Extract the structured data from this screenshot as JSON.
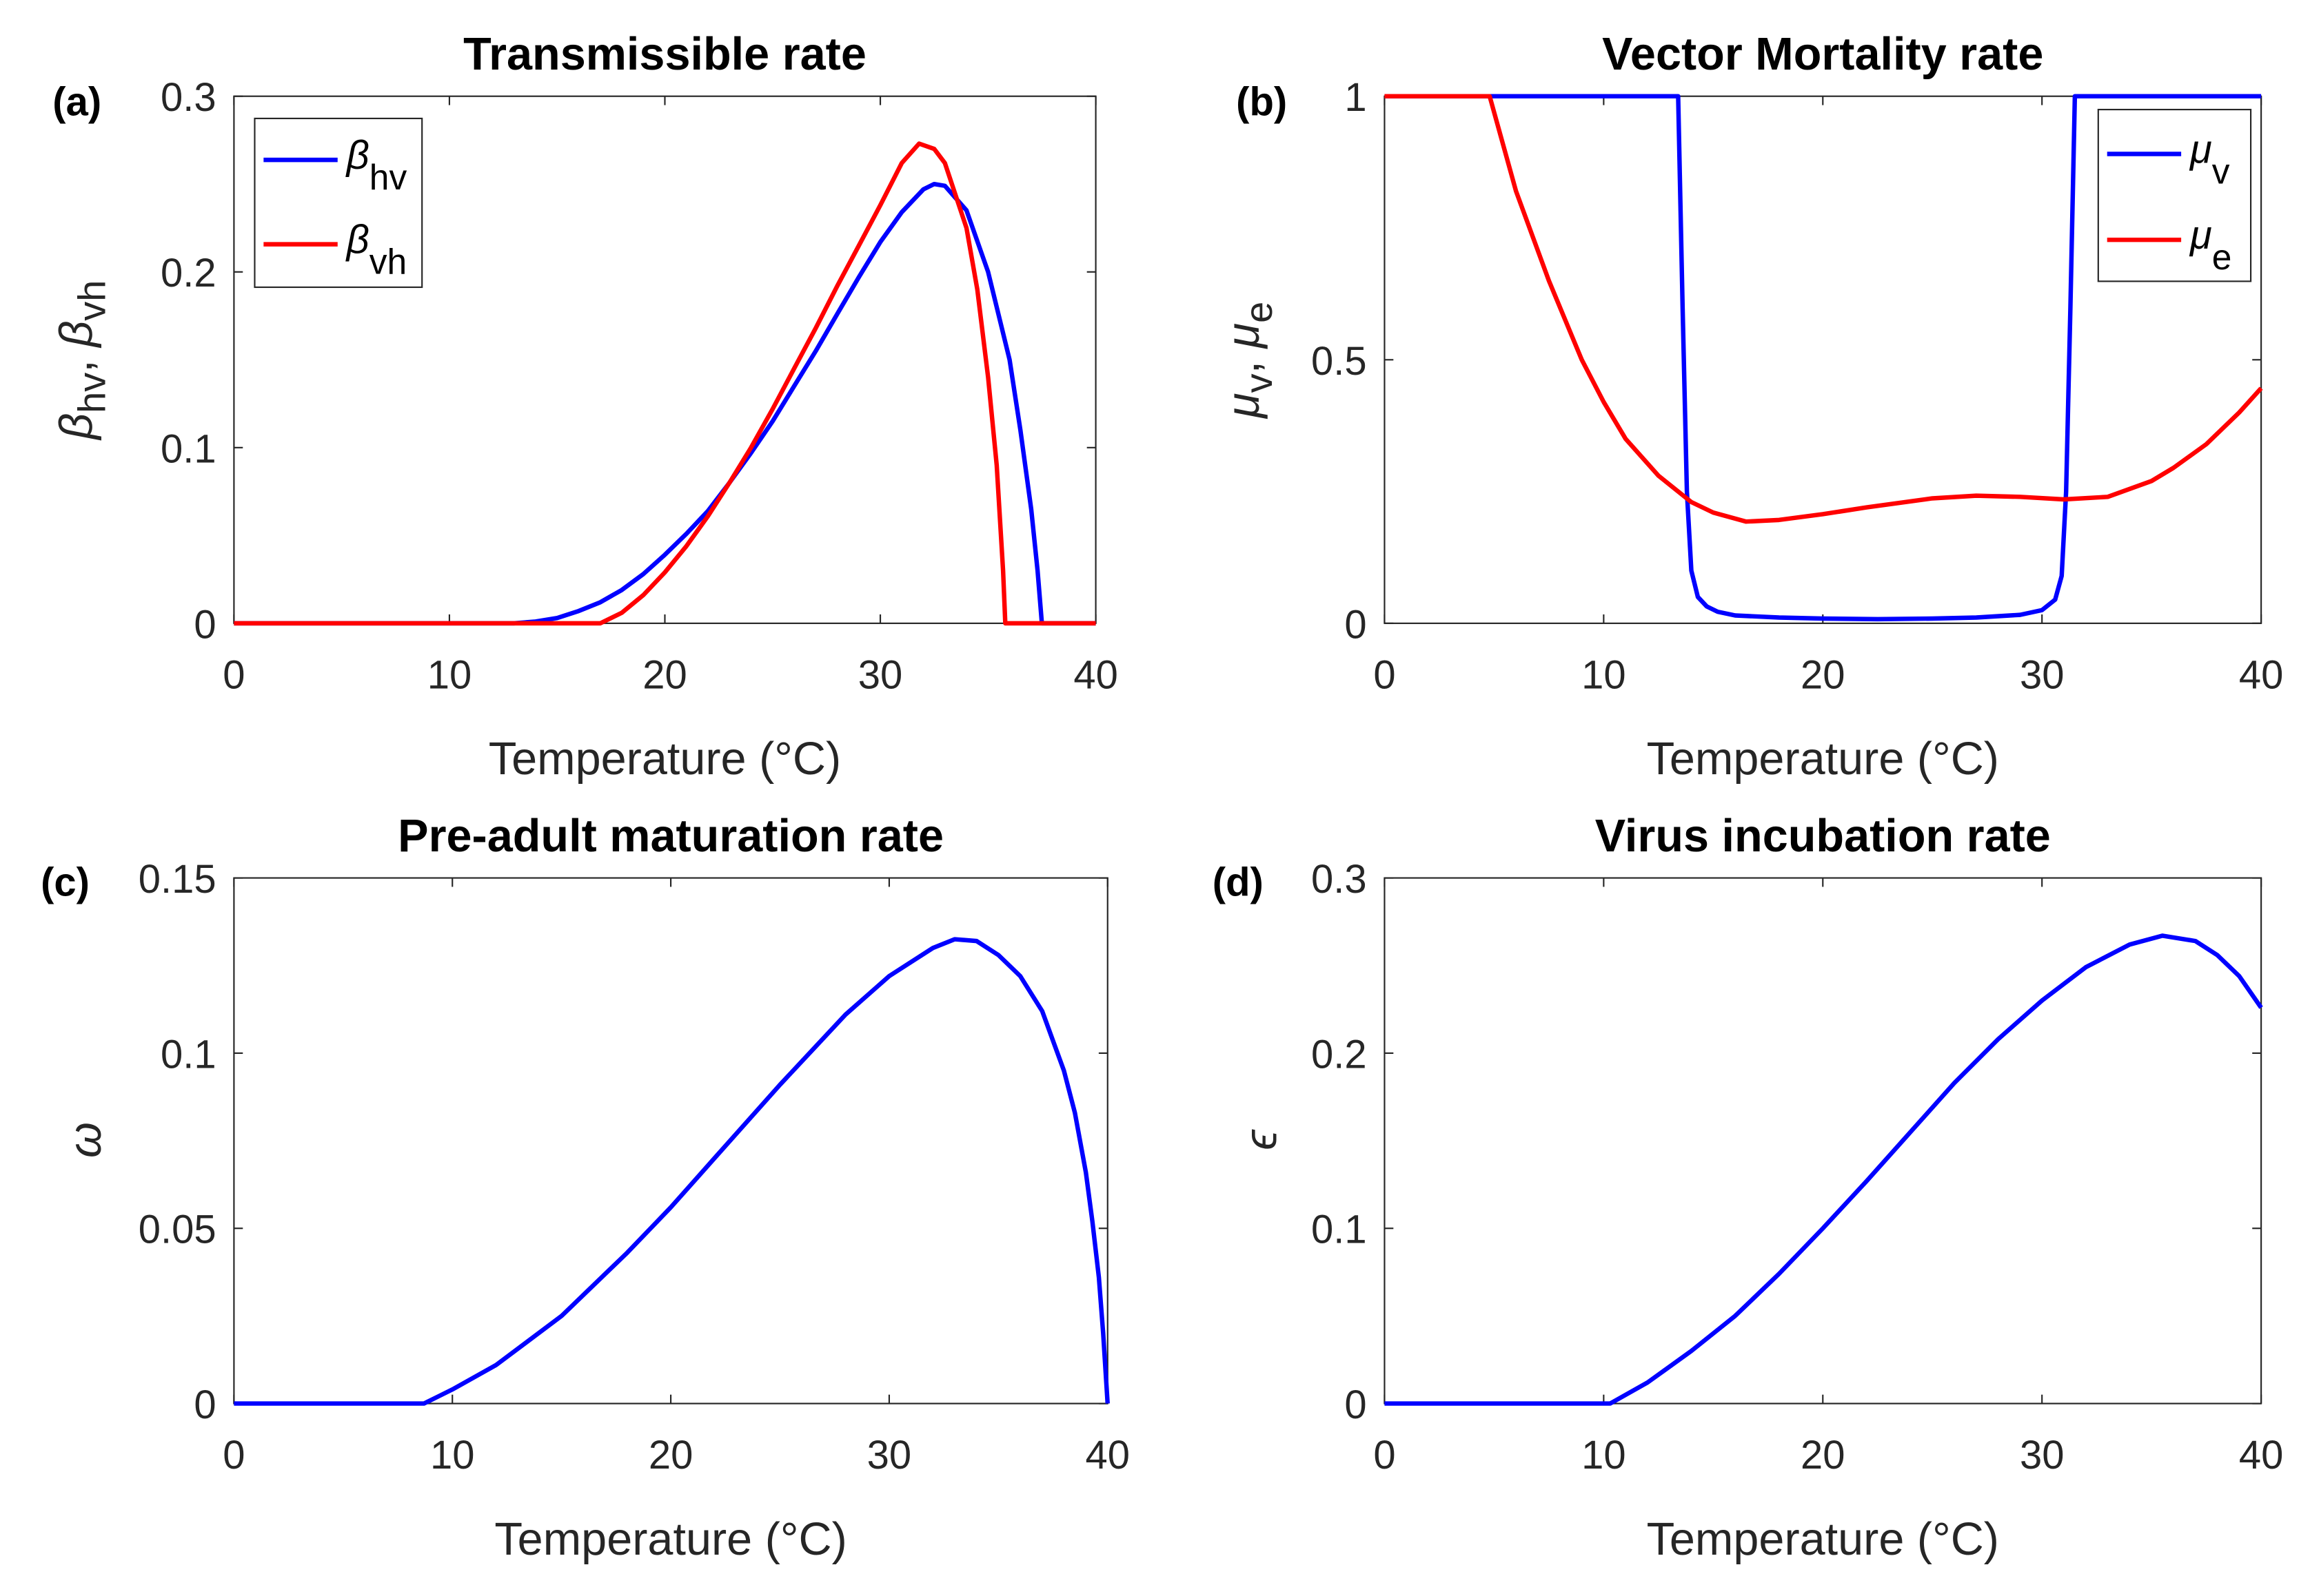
{
  "chart_data": [
    {
      "type": "line",
      "panel_label": "(a)",
      "title": "Transmissible rate",
      "xlabel": "Temperature (°C)",
      "ylabel_parts": [
        {
          "t": "β",
          "italic": true
        },
        {
          "t": "hv",
          "sub": true
        },
        {
          "t": ",  "
        },
        {
          "t": "β",
          "italic": true
        },
        {
          "t": "vh",
          "sub": true
        }
      ],
      "xlim": [
        0,
        40
      ],
      "ylim": [
        0,
        0.3
      ],
      "xticks": [
        0,
        10,
        20,
        30,
        40
      ],
      "xtick_labels": [
        "0",
        "10",
        "20",
        "30",
        "40"
      ],
      "yticks": [
        0,
        0.1,
        0.2,
        0.3
      ],
      "ytick_labels": [
        "0",
        "0.1",
        "0.2",
        "0.3"
      ],
      "legend_placement": "top-left",
      "series": [
        {
          "name": "β_hv",
          "legend_symbol": "β",
          "legend_sub": "hv",
          "color": "#0000ff",
          "x": [
            0,
            13,
            14,
            15,
            16,
            17,
            18,
            19,
            20,
            21,
            22,
            23,
            24,
            25,
            26,
            27,
            28,
            29,
            30,
            31,
            32,
            32.5,
            33,
            34,
            35,
            36,
            36.5,
            37,
            37.3,
            37.5,
            40
          ],
          "y": [
            0,
            0,
            0.001,
            0.003,
            0.007,
            0.012,
            0.019,
            0.028,
            0.039,
            0.051,
            0.064,
            0.08,
            0.097,
            0.115,
            0.135,
            0.155,
            0.176,
            0.197,
            0.217,
            0.234,
            0.247,
            0.25,
            0.249,
            0.235,
            0.2,
            0.15,
            0.11,
            0.065,
            0.03,
            0,
            0
          ]
        },
        {
          "name": "β_vh",
          "legend_symbol": "β",
          "legend_sub": "vh",
          "color": "#ff0000",
          "x": [
            0,
            17,
            18,
            19,
            20,
            21,
            22,
            23,
            24,
            25,
            26,
            27,
            28,
            29,
            30,
            31,
            31.8,
            32.5,
            33,
            34,
            34.5,
            35,
            35.4,
            35.7,
            35.8,
            40
          ],
          "y": [
            0,
            0,
            0.006,
            0.016,
            0.029,
            0.044,
            0.061,
            0.08,
            0.1,
            0.122,
            0.145,
            0.168,
            0.192,
            0.215,
            0.238,
            0.262,
            0.273,
            0.27,
            0.262,
            0.225,
            0.19,
            0.14,
            0.09,
            0.03,
            0,
            0
          ]
        }
      ]
    },
    {
      "type": "line",
      "panel_label": "(b)",
      "title": "Vector Mortality rate",
      "xlabel": "Temperature (°C)",
      "ylabel_parts": [
        {
          "t": "μ",
          "italic": true
        },
        {
          "t": "v",
          "sub": true
        },
        {
          "t": ",  "
        },
        {
          "t": "μ",
          "italic": true
        },
        {
          "t": "e",
          "sub": true
        }
      ],
      "xlim": [
        0,
        40
      ],
      "ylim": [
        0,
        1
      ],
      "xticks": [
        0,
        10,
        20,
        30,
        40
      ],
      "xtick_labels": [
        "0",
        "10",
        "20",
        "30",
        "40"
      ],
      "yticks": [
        0,
        0.5,
        1
      ],
      "ytick_labels": [
        "0",
        "0.5",
        "1"
      ],
      "legend_placement": "top-right",
      "series": [
        {
          "name": "μ_v",
          "legend_symbol": "μ",
          "legend_sub": "v",
          "color": "#0000ff",
          "x": [
            0,
            13.4,
            13.6,
            13.8,
            14,
            14.3,
            14.7,
            15.2,
            16,
            18,
            20,
            22.5,
            25,
            27,
            29,
            30,
            30.6,
            30.9,
            31.1,
            31.3,
            31.5,
            40
          ],
          "y": [
            1,
            1,
            0.6,
            0.25,
            0.1,
            0.05,
            0.032,
            0.022,
            0.015,
            0.011,
            0.009,
            0.008,
            0.009,
            0.011,
            0.016,
            0.025,
            0.045,
            0.09,
            0.25,
            0.6,
            1,
            1
          ]
        },
        {
          "name": "μ_e",
          "legend_symbol": "μ",
          "legend_sub": "e",
          "color": "#ff0000",
          "x": [
            0,
            4.8,
            6,
            7.5,
            9,
            10,
            11,
            12.5,
            14,
            15,
            16.5,
            18,
            20,
            22,
            25,
            27,
            29,
            31,
            33,
            35,
            36,
            37.5,
            39,
            40
          ],
          "y": [
            1,
            1,
            0.82,
            0.65,
            0.5,
            0.42,
            0.35,
            0.28,
            0.23,
            0.21,
            0.193,
            0.196,
            0.207,
            0.22,
            0.237,
            0.242,
            0.24,
            0.235,
            0.24,
            0.27,
            0.295,
            0.34,
            0.4,
            0.446
          ]
        }
      ]
    },
    {
      "type": "line",
      "panel_label": "(c)",
      "title": "Pre-adult maturation rate",
      "xlabel": "Temperature (°C)",
      "ylabel_parts": [
        {
          "t": "ω",
          "italic": true
        }
      ],
      "xlim": [
        0,
        40
      ],
      "ylim": [
        0,
        0.15
      ],
      "xticks": [
        0,
        10,
        20,
        30,
        40
      ],
      "xtick_labels": [
        "0",
        "10",
        "20",
        "30",
        "40"
      ],
      "yticks": [
        0,
        0.05,
        0.1,
        0.15
      ],
      "ytick_labels": [
        "0",
        "0.05",
        "0.1",
        "0.15"
      ],
      "series": [
        {
          "name": "ω",
          "color": "#0000ff",
          "x": [
            0,
            8.7,
            10,
            12,
            15,
            18,
            20,
            22,
            25,
            28,
            30,
            32,
            33,
            34,
            35,
            36,
            37,
            38,
            38.5,
            39,
            39.3,
            39.6,
            39.8,
            39.9,
            40
          ],
          "y": [
            0,
            0,
            0.004,
            0.011,
            0.025,
            0.043,
            0.056,
            0.07,
            0.091,
            0.111,
            0.122,
            0.13,
            0.1325,
            0.132,
            0.128,
            0.122,
            0.112,
            0.095,
            0.083,
            0.066,
            0.052,
            0.036,
            0.02,
            0.01,
            0
          ]
        }
      ]
    },
    {
      "type": "line",
      "panel_label": "(d)",
      "title": "Virus incubation rate",
      "xlabel": "Temperature (°C)",
      "ylabel_parts": [
        {
          "t": "ϵ",
          "italic": true
        }
      ],
      "xlim": [
        0,
        40
      ],
      "ylim": [
        0,
        0.3
      ],
      "xticks": [
        0,
        10,
        20,
        30,
        40
      ],
      "xtick_labels": [
        "0",
        "10",
        "20",
        "30",
        "40"
      ],
      "yticks": [
        0,
        0.1,
        0.2,
        0.3
      ],
      "ytick_labels": [
        "0",
        "0.1",
        "0.2",
        "0.3"
      ],
      "series": [
        {
          "name": "ϵ",
          "color": "#0000ff",
          "x": [
            0,
            10.3,
            12,
            14,
            16,
            18,
            20,
            22,
            24,
            26,
            28,
            30,
            32,
            34,
            35.5,
            37,
            38,
            39,
            40
          ],
          "y": [
            0,
            0,
            0.012,
            0.03,
            0.05,
            0.074,
            0.1,
            0.127,
            0.155,
            0.183,
            0.208,
            0.23,
            0.249,
            0.262,
            0.267,
            0.264,
            0.256,
            0.244,
            0.226
          ]
        }
      ]
    }
  ]
}
